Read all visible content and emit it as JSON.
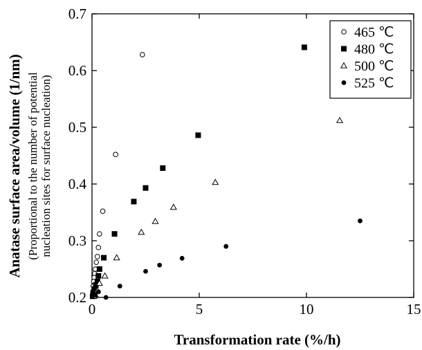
{
  "chart_data": {
    "type": "scatter",
    "xlabel": "Transformation rate (%/h)",
    "ylabel": "Anatase surface area/volume (1/nm)",
    "ylabel_note_line1": "(Proportional to the number of potential",
    "ylabel_note_line2": "nucleation sites for surface nucleation)",
    "xlim": [
      0,
      15
    ],
    "ylim": [
      0.2,
      0.7
    ],
    "xticks": [
      0,
      5,
      10,
      15
    ],
    "xtick_labels": [
      "0",
      "5",
      "10",
      "15"
    ],
    "yticks": [
      0.2,
      0.3,
      0.4,
      0.5,
      0.6,
      0.7
    ],
    "ytick_labels": [
      "0.2",
      "0.3",
      "0.4",
      "0.5",
      "0.6",
      "0.7"
    ],
    "grid": false,
    "legend_position": "top-right",
    "series": [
      {
        "name": "465 ℃",
        "marker": "open-circle",
        "points": [
          [
            2.35,
            0.628
          ],
          [
            1.1,
            0.452
          ],
          [
            0.5,
            0.352
          ],
          [
            0.35,
            0.312
          ],
          [
            0.3,
            0.288
          ],
          [
            0.25,
            0.272
          ],
          [
            0.2,
            0.262
          ],
          [
            0.15,
            0.25
          ],
          [
            0.12,
            0.242
          ],
          [
            0.1,
            0.235
          ],
          [
            0.08,
            0.228
          ],
          [
            0.06,
            0.22
          ],
          [
            0.04,
            0.21
          ],
          [
            0.02,
            0.203
          ]
        ]
      },
      {
        "name": "480 ℃",
        "marker": "filled-square",
        "points": [
          [
            9.9,
            0.641
          ],
          [
            4.95,
            0.486
          ],
          [
            3.3,
            0.428
          ],
          [
            2.5,
            0.393
          ],
          [
            1.95,
            0.369
          ],
          [
            1.05,
            0.312
          ],
          [
            0.55,
            0.27
          ],
          [
            0.35,
            0.25
          ],
          [
            0.3,
            0.238
          ],
          [
            0.25,
            0.228
          ],
          [
            0.18,
            0.222
          ],
          [
            0.12,
            0.215
          ],
          [
            0.08,
            0.21
          ],
          [
            0.05,
            0.205
          ],
          [
            0.03,
            0.202
          ]
        ]
      },
      {
        "name": "500 ℃",
        "marker": "open-triangle",
        "points": [
          [
            11.55,
            0.512
          ],
          [
            5.75,
            0.403
          ],
          [
            3.8,
            0.359
          ],
          [
            2.95,
            0.334
          ],
          [
            2.3,
            0.315
          ],
          [
            1.15,
            0.27
          ],
          [
            0.6,
            0.238
          ],
          [
            0.35,
            0.225
          ],
          [
            0.25,
            0.212
          ],
          [
            0.15,
            0.205
          ],
          [
            0.08,
            0.202
          ]
        ]
      },
      {
        "name": "525 ℃",
        "marker": "filled-circle",
        "points": [
          [
            12.5,
            0.335
          ],
          [
            6.25,
            0.29
          ],
          [
            4.2,
            0.269
          ],
          [
            3.15,
            0.257
          ],
          [
            2.5,
            0.246
          ],
          [
            1.3,
            0.22
          ],
          [
            0.65,
            0.2
          ],
          [
            0.3,
            0.21
          ],
          [
            0.15,
            0.205
          ],
          [
            0.05,
            0.202
          ]
        ]
      }
    ]
  }
}
